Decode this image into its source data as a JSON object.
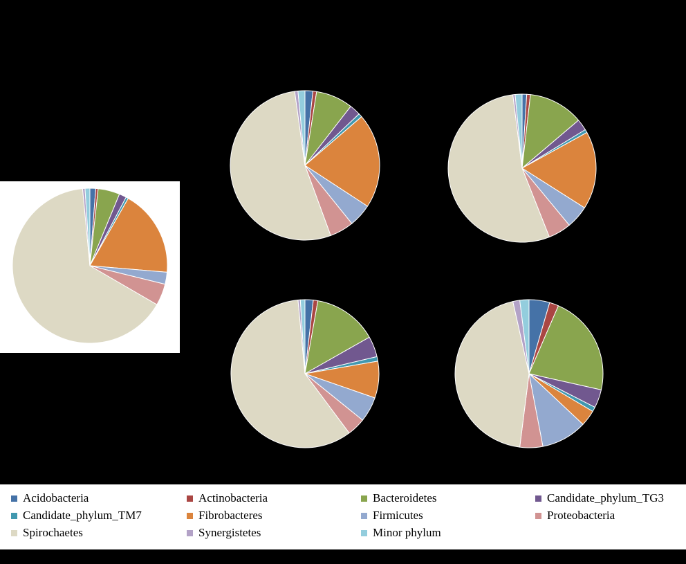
{
  "phyla": [
    {
      "name": "Acidobacteria",
      "color": "#4572A7"
    },
    {
      "name": "Actinobacteria",
      "color": "#AA4643"
    },
    {
      "name": "Bacteroidetes",
      "color": "#89A54E"
    },
    {
      "name": "Candidate_phylum_TG3",
      "color": "#71588F"
    },
    {
      "name": "Candidate_phylum_TM7",
      "color": "#4198AF"
    },
    {
      "name": "Fibrobacteres",
      "color": "#DB843D"
    },
    {
      "name": "Firmicutes",
      "color": "#93A9CF"
    },
    {
      "name": "Proteobacteria",
      "color": "#D19392"
    },
    {
      "name": "Spirochaetes",
      "color": "#DDD9C4"
    },
    {
      "name": "Synergistetes",
      "color": "#B3A2C7"
    },
    {
      "name": "Minor phylum",
      "color": "#93CDDD"
    }
  ],
  "chart_data": [
    {
      "type": "pie",
      "background": "white",
      "values": [
        1.2,
        0.5,
        4.5,
        1.5,
        0.5,
        18.0,
        2.5,
        4.5,
        64.8,
        0.5,
        1.0
      ]
    },
    {
      "type": "pie",
      "background": "black",
      "values": [
        1.7,
        0.8,
        8.0,
        2.4,
        0.8,
        20.5,
        5.0,
        5.2,
        53.4,
        0.7,
        1.5
      ]
    },
    {
      "type": "pie",
      "background": "black",
      "values": [
        1.0,
        0.8,
        12.0,
        2.5,
        0.7,
        17.0,
        5.0,
        5.0,
        54.0,
        0.5,
        1.5
      ]
    },
    {
      "type": "pie",
      "background": "black",
      "values": [
        1.8,
        1.0,
        14.0,
        4.5,
        1.0,
        8.0,
        5.5,
        4.0,
        58.7,
        0.5,
        1.0
      ]
    },
    {
      "type": "pie",
      "background": "black",
      "values": [
        4.5,
        2.0,
        22.0,
        4.0,
        1.0,
        3.5,
        10.0,
        5.0,
        44.5,
        1.5,
        2.0
      ]
    }
  ]
}
